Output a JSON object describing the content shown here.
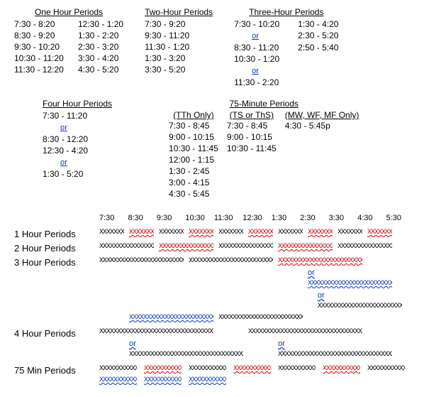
{
  "colors": {
    "black": "#000000",
    "red": "#cc0000",
    "blue": "#0033cc"
  },
  "or_text": "or",
  "x_pattern": "XXXXXXXXXXXXXXXXXXXXXXXXXXXXXXXXXXXXXXXXXXXXXXXXXXXXXXXXXXXXXXXXXXXXXXXXXXXXXXXXXXXXXXXXXXXXXXXXXXXX",
  "top": {
    "one_hour": {
      "title": "One Hour Periods",
      "cols": [
        [
          "7:30 - 8:20",
          "8:30 - 9:20",
          "9:30 - 10:20",
          "10:30 - 11:20",
          "11:30 - 12:20"
        ],
        [
          "12:30 - 1:20",
          "1:30 - 2:20",
          "2:30 - 3:20",
          "3:30 - 4:20",
          "4:30 - 5:20"
        ]
      ]
    },
    "two_hour": {
      "title": "Two-Hour Periods",
      "rows": [
        "7:30 - 9:20",
        "9:30 - 11:20",
        "11:30 - 1:20",
        "1:30 - 3:20",
        "3:30 - 5:20"
      ]
    },
    "three_hour": {
      "title": "Three-Hour Periods",
      "cols": [
        [
          "7:30 - 10:20",
          "or",
          "8:30 - 11:20",
          "10:30 - 1:20",
          "or",
          "11:30 - 2:20"
        ],
        [
          "1:30 - 4:20",
          "2:30 - 5:20",
          "2:50 - 5:40",
          "",
          "",
          ""
        ]
      ]
    }
  },
  "mid": {
    "four_hour": {
      "title": "Four Hour Periods",
      "rows": [
        "7:30 - 11:20",
        "or",
        "8:30 - 12:20",
        "12:30 - 4:20",
        "or",
        "1:30 - 5:20"
      ]
    },
    "seventy_five": {
      "title": "75-Minute Periods",
      "sub_titles": [
        "(TTh Only)",
        "(TS or ThS)",
        "(MW, WF, MF Only)"
      ],
      "cols": [
        [
          "7:30 - 8:45",
          "9:00 - 10:15",
          "10:30 - 11:45",
          "12:00 - 1:15",
          "1:30 - 2:45",
          "3:00 - 4:15",
          "4:30 - 5:45"
        ],
        [
          "7:30 - 8:45",
          "9:00 - 10:15",
          "10:30 - 11:45",
          "",
          "",
          "",
          ""
        ],
        [
          "4:30 - 5:45p",
          "",
          "",
          "",
          "",
          "",
          ""
        ]
      ]
    }
  },
  "timeline": {
    "header": [
      "7:30",
      "8:30",
      "9:30",
      "10:30",
      "11:30",
      "12:30",
      "1:30",
      "2:30",
      "3:30",
      "4:30",
      "5:30"
    ],
    "pxPerHour": 42,
    "groups": [
      {
        "label": "1 Hour Periods",
        "rows": [
          {
            "bars": [
              {
                "start": 0,
                "len": 0.83,
                "color": "black"
              },
              {
                "start": 1,
                "len": 0.83,
                "color": "red"
              },
              {
                "start": 2,
                "len": 0.83,
                "color": "black"
              },
              {
                "start": 3,
                "len": 0.83,
                "color": "red"
              },
              {
                "start": 4,
                "len": 0.83,
                "color": "black"
              },
              {
                "start": 5,
                "len": 0.83,
                "color": "red"
              },
              {
                "start": 6,
                "len": 0.83,
                "color": "black"
              },
              {
                "start": 7,
                "len": 0.83,
                "color": "red"
              },
              {
                "start": 8,
                "len": 0.83,
                "color": "black"
              },
              {
                "start": 9,
                "len": 0.83,
                "color": "red"
              }
            ]
          }
        ]
      },
      {
        "label": "2 Hour Periods",
        "rows": [
          {
            "bars": [
              {
                "start": 0,
                "len": 1.83,
                "color": "black"
              },
              {
                "start": 2,
                "len": 1.83,
                "color": "red"
              },
              {
                "start": 4,
                "len": 1.83,
                "color": "black"
              },
              {
                "start": 6,
                "len": 1.83,
                "color": "red"
              },
              {
                "start": 8,
                "len": 1.83,
                "color": "black"
              }
            ]
          }
        ]
      },
      {
        "label": "3 Hour Periods",
        "rows": [
          {
            "bars": [
              {
                "start": 0,
                "len": 2.83,
                "color": "black"
              },
              {
                "start": 3,
                "len": 2.83,
                "color": "black"
              },
              {
                "start": 6,
                "len": 2.83,
                "color": "red"
              }
            ]
          },
          {
            "bars": [],
            "or_at": 7
          },
          {
            "bars": [
              {
                "start": 7,
                "len": 2.83,
                "color": "blue"
              }
            ]
          },
          {
            "bars": [],
            "or_at": 7.33
          },
          {
            "bars": [
              {
                "start": 7.33,
                "len": 2.83,
                "color": "black"
              }
            ]
          },
          {
            "bars": [
              {
                "start": 1,
                "len": 2.83,
                "color": "blue"
              },
              {
                "start": 4,
                "len": 2.83,
                "color": "black"
              }
            ]
          }
        ]
      },
      {
        "label": "4 Hour Periods",
        "rows": [
          {
            "bars": [
              {
                "start": 0,
                "len": 3.83,
                "color": "black"
              },
              {
                "start": 5,
                "len": 3.83,
                "color": "black"
              }
            ]
          },
          {
            "bars": [],
            "double_or_at": [
              1,
              6
            ]
          },
          {
            "bars": [
              {
                "start": 1,
                "len": 3.83,
                "color": "black"
              },
              {
                "start": 6,
                "len": 3.83,
                "color": "black"
              }
            ]
          }
        ]
      },
      {
        "label": "75 Min Periods",
        "rows": [
          {
            "bars": [
              {
                "start": 0,
                "len": 1.25,
                "color": "black"
              },
              {
                "start": 1.5,
                "len": 1.25,
                "color": "red"
              },
              {
                "start": 3,
                "len": 1.25,
                "color": "black"
              },
              {
                "start": 4.5,
                "len": 1.25,
                "color": "red"
              },
              {
                "start": 6,
                "len": 1.25,
                "color": "black"
              },
              {
                "start": 7.5,
                "len": 1.25,
                "color": "red"
              },
              {
                "start": 9,
                "len": 1.25,
                "color": "black"
              }
            ]
          },
          {
            "bars": [
              {
                "start": 0,
                "len": 1.25,
                "color": "blue"
              },
              {
                "start": 1.5,
                "len": 1.25,
                "color": "blue"
              },
              {
                "start": 3,
                "len": 1.25,
                "color": "blue"
              }
            ]
          }
        ]
      }
    ]
  }
}
